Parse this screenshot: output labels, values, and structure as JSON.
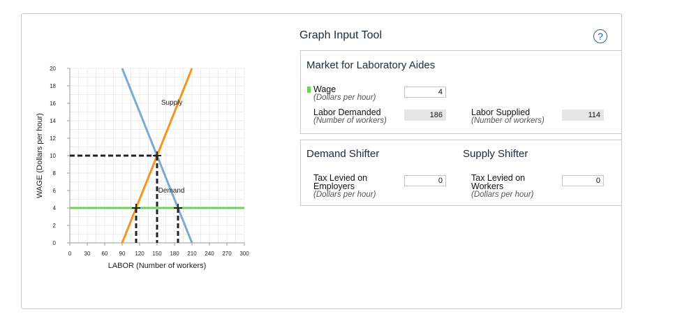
{
  "chart_data": {
    "type": "line",
    "xlabel": "LABOR (Number of workers)",
    "ylabel": "WAGE (Dollars per hour)",
    "xlim": [
      0,
      300
    ],
    "ylim": [
      0,
      20
    ],
    "x_ticks": [
      0,
      30,
      60,
      90,
      120,
      150,
      180,
      210,
      240,
      270,
      300
    ],
    "y_ticks": [
      0,
      2,
      4,
      6,
      8,
      10,
      12,
      14,
      16,
      18,
      20
    ],
    "grid": true,
    "series": [
      {
        "name": "Supply",
        "color": "#f7941d",
        "points": [
          [
            90,
            0
          ],
          [
            210,
            20
          ]
        ]
      },
      {
        "name": "Demand",
        "color": "#7aa9d6",
        "points": [
          [
            90,
            20
          ],
          [
            210,
            0
          ]
        ]
      }
    ],
    "wage_line": {
      "y": 4,
      "color": "#6ed25a"
    },
    "equilibrium": {
      "x": 150,
      "y": 10
    },
    "wage_markers": [
      [
        114,
        4
      ],
      [
        186,
        4
      ]
    ],
    "annotations": [
      "Supply",
      "Demand"
    ]
  },
  "tool": {
    "title": "Graph Input Tool",
    "help_glyph": "?"
  },
  "market": {
    "title": "Market for Laboratory Aides",
    "wage_label": "Wage",
    "wage_sub": "(Dollars per hour)",
    "wage_value": "4",
    "ld_label": "Labor Demanded",
    "ld_sub": "(Number of workers)",
    "ld_value": "186",
    "ls_label": "Labor Supplied",
    "ls_sub": "(Number of workers)",
    "ls_value": "114"
  },
  "shifters": {
    "demand_title": "Demand Shifter",
    "supply_title": "Supply Shifter",
    "emp_label_1": "Tax Levied on",
    "emp_label_2": "Employers",
    "emp_sub": "(Dollars per hour)",
    "emp_value": "0",
    "wrk_label_1": "Tax Levied on",
    "wrk_label_2": "Workers",
    "wrk_sub": "(Dollars per hour)",
    "wrk_value": "0"
  }
}
